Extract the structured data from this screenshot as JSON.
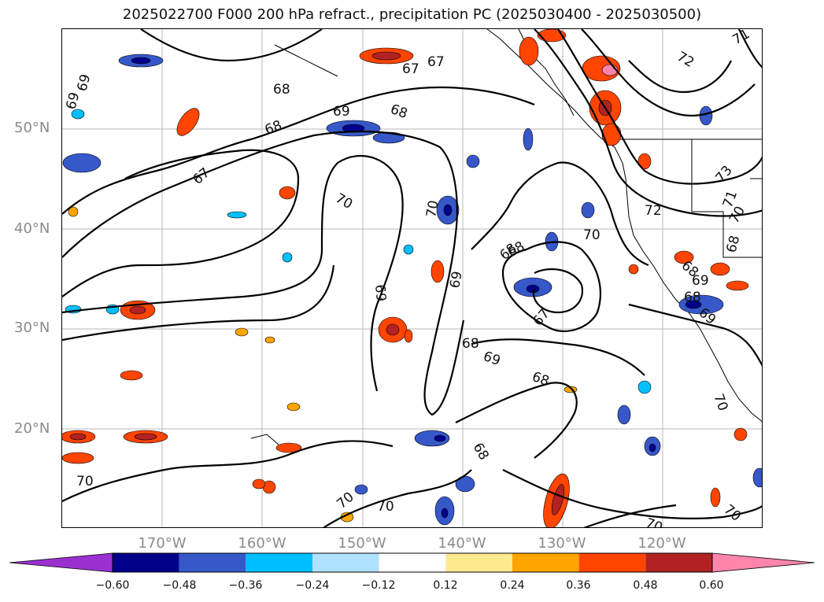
{
  "title": "2025022700 F000 200 hPa refract., precipitation PC (2025030400 - 2025030500)",
  "lat_labels": [
    "50°N",
    "40°N",
    "30°N",
    "20°N"
  ],
  "lon_labels": [
    "170°W",
    "160°W",
    "150°W",
    "140°W",
    "130°W",
    "120°W"
  ],
  "colorbar": {
    "ticks": [
      "−0.60",
      "−0.48",
      "−0.36",
      "−0.24",
      "−0.12",
      "0.12",
      "0.24",
      "0.36",
      "0.48",
      "0.60"
    ],
    "colors": [
      "#9b30d0",
      "#00008b",
      "#3658c8",
      "#00bfff",
      "#b0e2ff",
      "#ffffff",
      "#ffe98e",
      "#ffa500",
      "#ff4500",
      "#b22222",
      "#ff85ad"
    ]
  },
  "contour_labels": [
    "69",
    "68",
    "69",
    "68",
    "67",
    "70",
    "68",
    "69",
    "70",
    "67",
    "67",
    "68",
    "71",
    "72",
    "73",
    "70",
    "72",
    "71",
    "68",
    "68",
    "69",
    "69",
    "69",
    "68",
    "70",
    "69",
    "68",
    "68",
    "68",
    "67",
    "70",
    "70",
    "70",
    "70",
    "70",
    "70",
    "68",
    "69"
  ]
}
